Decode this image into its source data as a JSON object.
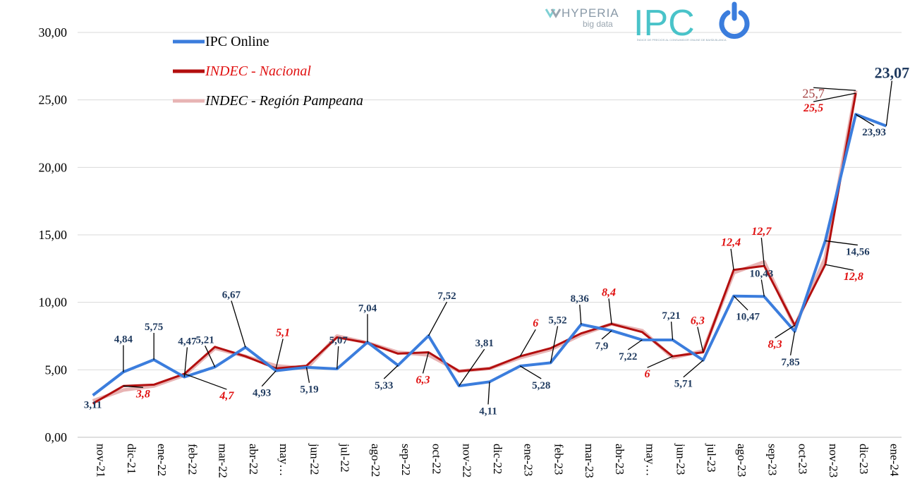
{
  "logo": {
    "brand": "HYPERIA",
    "brand_sub": "big data",
    "product": "IPC",
    "tagline": "ÍNDICE DE PRECIOS AL CONSUMIDOR ONLINE DE BAHÍA BLANCA"
  },
  "colors": {
    "ipc": "#3b7ddd",
    "nacional": "#b30f0f",
    "pampeana": "#e8b4b4",
    "ipc_label": "#1f3a5f",
    "nacional_label": "#e01010",
    "pampeana_label": "#a34040"
  },
  "chart_data": {
    "type": "line",
    "categories": [
      "nov-21",
      "dic-21",
      "ene-22",
      "feb-22",
      "mar-22",
      "abr-22",
      "may…",
      "jun-22",
      "jul-22",
      "ago-22",
      "sep-22",
      "oct-22",
      "nov-22",
      "dic-22",
      "ene-23",
      "feb-23",
      "mar-23",
      "abr-23",
      "may…",
      "jun-23",
      "jul-23",
      "ago-23",
      "sep-23",
      "oct-23",
      "nov-23",
      "dic-23",
      "ene-24"
    ],
    "ylim": [
      0,
      30
    ],
    "yticks": [
      "0,00",
      "5,00",
      "10,00",
      "15,00",
      "20,00",
      "25,00",
      "30,00"
    ],
    "grid": true,
    "legend_position": "top-left",
    "series": [
      {
        "name": "IPC Online",
        "values": [
          3.11,
          4.84,
          5.75,
          4.47,
          5.21,
          6.67,
          4.93,
          5.19,
          5.07,
          7.04,
          5.33,
          7.52,
          3.81,
          4.11,
          5.28,
          5.52,
          8.36,
          7.9,
          7.22,
          7.21,
          5.71,
          10.47,
          10.43,
          7.85,
          14.56,
          23.93,
          23.07
        ]
      },
      {
        "name": "INDEC - Nacional",
        "values": [
          2.5,
          3.8,
          3.9,
          4.7,
          6.7,
          6.0,
          5.1,
          5.3,
          7.4,
          7.0,
          6.2,
          6.3,
          4.9,
          5.1,
          6.0,
          6.6,
          7.7,
          8.4,
          7.8,
          6.0,
          6.3,
          12.4,
          12.7,
          8.3,
          12.8,
          25.5,
          null
        ]
      },
      {
        "name": "INDEC - Región Pampeana",
        "values": [
          2.7,
          3.5,
          3.8,
          4.6,
          6.6,
          6.0,
          5.3,
          5.1,
          7.5,
          7.0,
          6.3,
          6.1,
          4.9,
          5.1,
          5.9,
          6.5,
          7.6,
          8.4,
          7.9,
          5.9,
          6.4,
          12.2,
          13.0,
          8.2,
          13.3,
          25.7,
          null
        ]
      }
    ],
    "data_labels": [
      {
        "series": 0,
        "index": 0,
        "text": "3,11"
      },
      {
        "series": 0,
        "index": 1,
        "text": "4,84"
      },
      {
        "series": 0,
        "index": 2,
        "text": "5,75"
      },
      {
        "series": 0,
        "index": 3,
        "text": "4,47"
      },
      {
        "series": 0,
        "index": 4,
        "text": "5,21"
      },
      {
        "series": 0,
        "index": 5,
        "text": "6,67"
      },
      {
        "series": 0,
        "index": 6,
        "text": "4,93"
      },
      {
        "series": 0,
        "index": 7,
        "text": "5,19"
      },
      {
        "series": 0,
        "index": 8,
        "text": "5,07"
      },
      {
        "series": 0,
        "index": 9,
        "text": "7,04"
      },
      {
        "series": 0,
        "index": 10,
        "text": "5,33"
      },
      {
        "series": 0,
        "index": 11,
        "text": "7,52"
      },
      {
        "series": 0,
        "index": 12,
        "text": "3,81"
      },
      {
        "series": 0,
        "index": 13,
        "text": "4,11"
      },
      {
        "series": 0,
        "index": 14,
        "text": "5,28"
      },
      {
        "series": 0,
        "index": 15,
        "text": "5,52"
      },
      {
        "series": 0,
        "index": 16,
        "text": "8,36"
      },
      {
        "series": 0,
        "index": 17,
        "text": "7,9"
      },
      {
        "series": 0,
        "index": 18,
        "text": "7,22"
      },
      {
        "series": 0,
        "index": 19,
        "text": "7,21"
      },
      {
        "series": 0,
        "index": 20,
        "text": "5,71"
      },
      {
        "series": 0,
        "index": 21,
        "text": "10,47"
      },
      {
        "series": 0,
        "index": 22,
        "text": "10,43"
      },
      {
        "series": 0,
        "index": 23,
        "text": "7,85"
      },
      {
        "series": 0,
        "index": 24,
        "text": "14,56"
      },
      {
        "series": 0,
        "index": 25,
        "text": "23,93"
      },
      {
        "series": 0,
        "index": 26,
        "text": "23,07"
      },
      {
        "series": 1,
        "index": 1,
        "text": "3,8"
      },
      {
        "series": 1,
        "index": 3,
        "text": "4,7"
      },
      {
        "series": 1,
        "index": 6,
        "text": "5,1"
      },
      {
        "series": 1,
        "index": 11,
        "text": "6,3"
      },
      {
        "series": 1,
        "index": 14,
        "text": "6"
      },
      {
        "series": 1,
        "index": 17,
        "text": "8,4"
      },
      {
        "series": 1,
        "index": 19,
        "text": "6"
      },
      {
        "series": 1,
        "index": 20,
        "text": "6,3"
      },
      {
        "series": 1,
        "index": 21,
        "text": "12,4"
      },
      {
        "series": 1,
        "index": 22,
        "text": "12,7"
      },
      {
        "series": 1,
        "index": 23,
        "text": "8,3"
      },
      {
        "series": 1,
        "index": 24,
        "text": "12,8"
      },
      {
        "series": 1,
        "index": 25,
        "text": "25,5"
      },
      {
        "series": 2,
        "index": 25,
        "text": "25,7"
      }
    ]
  }
}
